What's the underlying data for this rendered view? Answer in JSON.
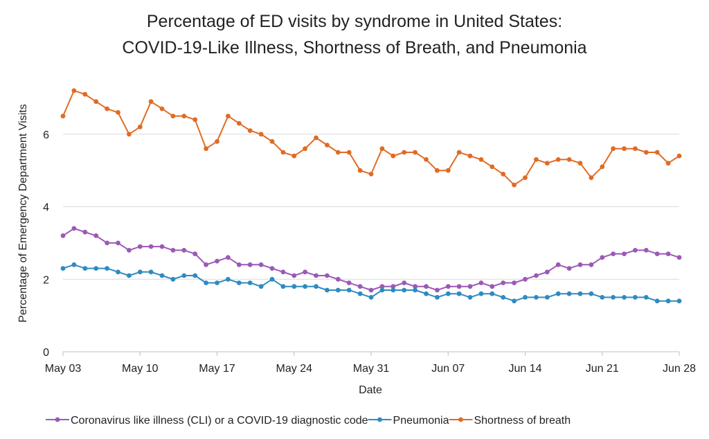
{
  "chart_data": {
    "type": "line",
    "title_line1": "Percentage of ED visits by syndrome in United States:",
    "title_line2": "COVID-19-Like Illness, Shortness of Breath, and Pneumonia",
    "xlabel": "Date",
    "ylabel": "Percentage of Emergency Department Visits",
    "ylim": [
      0,
      7.6
    ],
    "yticks": [
      0,
      2,
      4,
      6
    ],
    "x_tick_labels": [
      "May 03",
      "May 10",
      "May 17",
      "May 24",
      "May 31",
      "Jun 07",
      "Jun 14",
      "Jun 21",
      "Jun 28"
    ],
    "x_start_label": "May 03",
    "x_end_label": "Jun 28",
    "grid": true,
    "legend_position": "bottom",
    "series": [
      {
        "name": "Coronavirus like illness (CLI) or a COVID-19 diagnostic code",
        "color": "#9b59b6",
        "values": [
          3.2,
          3.4,
          3.3,
          3.2,
          3.0,
          3.0,
          2.8,
          2.9,
          2.9,
          2.9,
          2.8,
          2.8,
          2.7,
          2.4,
          2.5,
          2.6,
          2.4,
          2.4,
          2.4,
          2.3,
          2.2,
          2.1,
          2.2,
          2.1,
          2.1,
          2.0,
          1.9,
          1.8,
          1.7,
          1.8,
          1.8,
          1.9,
          1.8,
          1.8,
          1.7,
          1.8,
          1.8,
          1.8,
          1.9,
          1.8,
          1.9,
          1.9,
          2.0,
          2.1,
          2.2,
          2.4,
          2.3,
          2.4,
          2.4,
          2.6,
          2.7,
          2.7,
          2.8,
          2.8,
          2.7,
          2.7,
          2.6
        ]
      },
      {
        "name": "Pneumonia",
        "color": "#2e8bc0",
        "values": [
          2.3,
          2.4,
          2.3,
          2.3,
          2.3,
          2.2,
          2.1,
          2.2,
          2.2,
          2.1,
          2.0,
          2.1,
          2.1,
          1.9,
          1.9,
          2.0,
          1.9,
          1.9,
          1.8,
          2.0,
          1.8,
          1.8,
          1.8,
          1.8,
          1.7,
          1.7,
          1.7,
          1.6,
          1.5,
          1.7,
          1.7,
          1.7,
          1.7,
          1.6,
          1.5,
          1.6,
          1.6,
          1.5,
          1.6,
          1.6,
          1.5,
          1.4,
          1.5,
          1.5,
          1.5,
          1.6,
          1.6,
          1.6,
          1.6,
          1.5,
          1.5,
          1.5,
          1.5,
          1.5,
          1.4,
          1.4,
          1.4
        ]
      },
      {
        "name": "Shortness of breath",
        "color": "#e06b25",
        "values": [
          6.5,
          7.2,
          7.1,
          6.9,
          6.7,
          6.6,
          6.0,
          6.2,
          6.9,
          6.7,
          6.5,
          6.5,
          6.4,
          5.6,
          5.8,
          6.5,
          6.3,
          6.1,
          6.0,
          5.8,
          5.5,
          5.4,
          5.6,
          5.9,
          5.7,
          5.5,
          5.5,
          5.0,
          4.9,
          5.6,
          5.4,
          5.5,
          5.5,
          5.3,
          5.0,
          5.0,
          5.5,
          5.4,
          5.3,
          5.1,
          4.9,
          4.6,
          4.8,
          5.3,
          5.2,
          5.3,
          5.3,
          5.2,
          4.8,
          5.1,
          5.6,
          5.6,
          5.6,
          5.5,
          5.5,
          5.2,
          5.4
        ]
      }
    ]
  }
}
